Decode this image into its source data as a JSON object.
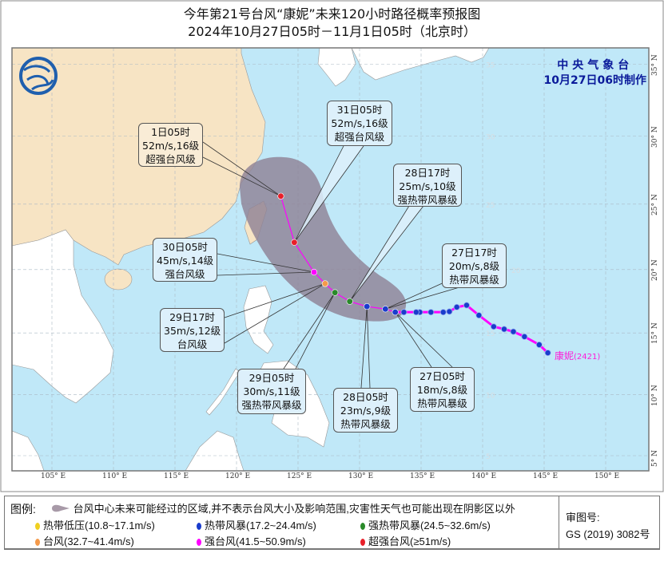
{
  "title": {
    "line1": "今年第21号台风“康妮”未来120小时路径概率预报图",
    "line2": "2024年10月27日05时－11月1日05时（北京时）"
  },
  "agency": {
    "name": "中央气象台",
    "issued": "10月27日06时制作"
  },
  "storm": {
    "name": "康妮",
    "code": "(2421)"
  },
  "axes": {
    "lon_labels": [
      "105° E",
      "110° E",
      "115° E",
      "120° E",
      "125° E",
      "130° E",
      "135° E",
      "140° E",
      "145° E",
      "150° E"
    ],
    "lon_values": [
      105,
      110,
      115,
      120,
      125,
      130,
      135,
      140,
      145,
      150
    ],
    "lat_labels": [
      "5° N",
      "10° N",
      "15° N",
      "20° N",
      "25° N",
      "30° N",
      "35° N"
    ],
    "lat_values": [
      5,
      10,
      15,
      20,
      25,
      30,
      35
    ],
    "inner_lat_labels": [
      "5",
      "10",
      "15",
      "20",
      "25",
      "30",
      "35"
    ]
  },
  "colors": {
    "sea": "#c0e8f8",
    "china_land": "#f7e4c4",
    "other_land": "#ffffff",
    "track": "#ff00ff",
    "cone": "#8f8296",
    "TD": "#f0d020",
    "TS": "#1a3ccc",
    "STS": "#2a8a2a",
    "TY": "#f59a4a",
    "STY": "#ff00ff",
    "SuperTY": "#e8202a"
  },
  "observed_track": [
    {
      "lon": 145.3,
      "lat": 13.4
    },
    {
      "lon": 144.6,
      "lat": 14.05
    },
    {
      "lon": 143.4,
      "lat": 14.7
    },
    {
      "lon": 142.5,
      "lat": 15.1
    },
    {
      "lon": 141.75,
      "lat": 15.3
    },
    {
      "lon": 140.9,
      "lat": 15.5
    },
    {
      "lon": 139.7,
      "lat": 16.4
    },
    {
      "lon": 138.7,
      "lat": 17.2
    },
    {
      "lon": 137.9,
      "lat": 17.05
    },
    {
      "lon": 137.3,
      "lat": 16.7
    },
    {
      "lon": 136.8,
      "lat": 16.65
    },
    {
      "lon": 135.8,
      "lat": 16.65
    },
    {
      "lon": 134.9,
      "lat": 16.65
    },
    {
      "lon": 134.6,
      "lat": 16.65
    },
    {
      "lon": 133.6,
      "lat": 16.65
    },
    {
      "lon": 132.9,
      "lat": 16.65
    }
  ],
  "forecast": [
    {
      "time": "27日05时",
      "wind": "18m/s,8级",
      "grade": "热带风暴级",
      "cat": "TS",
      "lon": 132.9,
      "lat": 16.65
    },
    {
      "time": "27日17时",
      "wind": "20m/s,8级",
      "grade": "热带风暴级",
      "cat": "TS",
      "lon": 132.1,
      "lat": 16.9
    },
    {
      "time": "28日05时",
      "wind": "23m/s,9级",
      "grade": "热带风暴级",
      "cat": "TS",
      "lon": 130.6,
      "lat": 17.1
    },
    {
      "time": "28日17时",
      "wind": "25m/s,10级",
      "grade": "强热带风暴级",
      "cat": "STS",
      "lon": 129.2,
      "lat": 17.5
    },
    {
      "time": "29日05时",
      "wind": "30m/s,11级",
      "grade": "强热带风暴级",
      "cat": "STS",
      "lon": 128.0,
      "lat": 18.2
    },
    {
      "time": "29日17时",
      "wind": "35m/s,12级",
      "grade": "台风级",
      "cat": "TY",
      "lon": 127.2,
      "lat": 18.9
    },
    {
      "time": "30日05时",
      "wind": "45m/s,14级",
      "grade": "强台风级",
      "cat": "STY",
      "lon": 126.3,
      "lat": 19.8
    },
    {
      "time": "31日05时",
      "wind": "52m/s,16级",
      "grade": "超强台风级",
      "cat": "SuperTY",
      "lon": 124.7,
      "lat": 22.1
    },
    {
      "time": "1日05时",
      "wind": "52m/s,16级",
      "grade": "超强台风级",
      "cat": "SuperTY",
      "lon": 123.6,
      "lat": 25.6
    }
  ],
  "legend": {
    "label": "图例:",
    "cone_text": "台风中心未来可能经过的区域,并不表示台风大小及影响范围,灾害性天气也可能出现在阴影区以外",
    "items": [
      {
        "text": "热带低压(10.8~17.1m/s)",
        "cat": "TD"
      },
      {
        "text": "热带风暴(17.2~24.4m/s)",
        "cat": "TS"
      },
      {
        "text": "强热带风暴(24.5~32.6m/s)",
        "cat": "STS"
      },
      {
        "text": "台风(32.7~41.4m/s)",
        "cat": "TY"
      },
      {
        "text": "强台风(41.5~50.9m/s)",
        "cat": "STY"
      },
      {
        "text": "超强台风(≥51m/s)",
        "cat": "SuperTY"
      }
    ],
    "review_label": "审图号:",
    "review_number": "GS (2019) 3082号"
  }
}
